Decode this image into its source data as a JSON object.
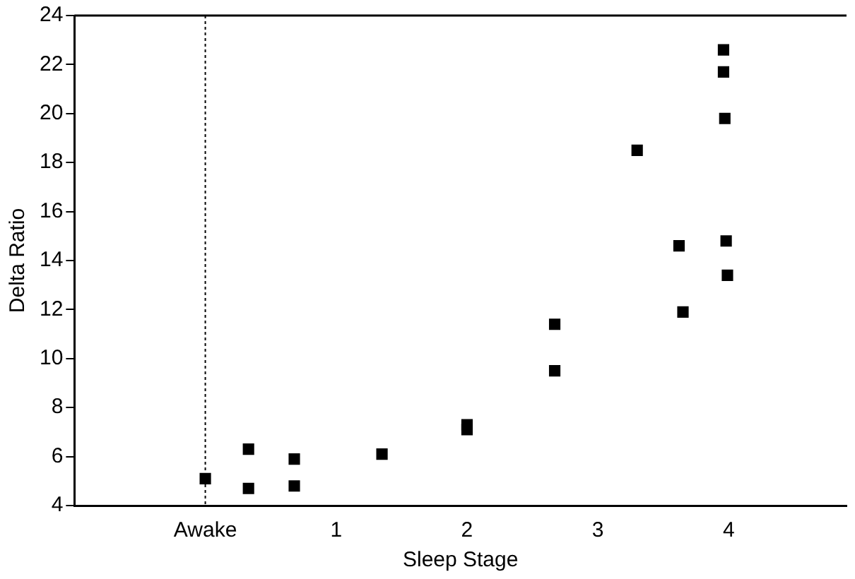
{
  "chart_data": {
    "type": "scatter",
    "xlabel": "Sleep Stage",
    "ylabel": "Delta Ratio",
    "x": [
      0,
      0.33,
      0.33,
      0.68,
      0.68,
      1.35,
      2,
      2,
      2.67,
      2.67,
      3.3,
      3.62,
      3.65,
      3.96,
      3.96,
      3.97,
      3.98,
      3.99
    ],
    "values": [
      5.1,
      6.3,
      4.7,
      5.9,
      4.8,
      6.1,
      7.3,
      7.1,
      11.4,
      9.5,
      18.5,
      14.6,
      11.9,
      22.6,
      21.7,
      19.8,
      14.8,
      13.4
    ],
    "color": "#000000",
    "marker": "square",
    "xlim": [
      -1,
      4.9
    ],
    "xticks": [
      {
        "value": 0,
        "label": "Awake"
      },
      1,
      2,
      3,
      4
    ],
    "ylim": [
      4,
      24
    ],
    "yticks": [
      4,
      6,
      8,
      10,
      12,
      14,
      16,
      18,
      20,
      22,
      24
    ],
    "ref_lines": [
      {
        "axis": "x",
        "value": 0,
        "line_style": "dotted",
        "color": "#000000"
      }
    ],
    "grid": false,
    "legend": false
  }
}
